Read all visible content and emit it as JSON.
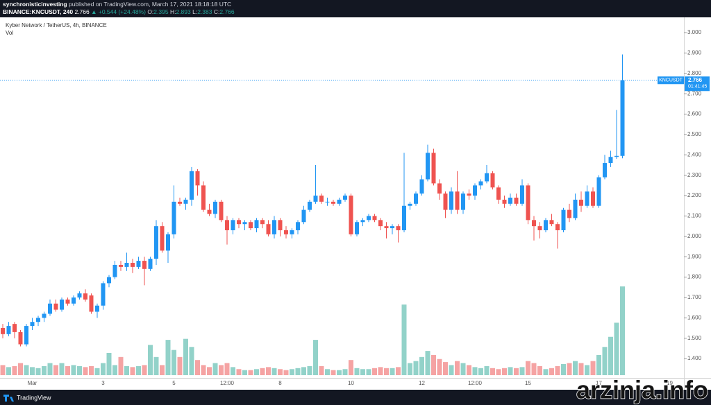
{
  "header": {
    "author": "synchronisticinvesting",
    "published": "published on TradingView.com, March 17, 2021 18:18:18 UTC",
    "symbol": "BINANCE:KNCUSDT, 240",
    "last": "2.766",
    "change": "▲ +0.544 (+24.48%)",
    "o_label": "O:",
    "o": "2.395",
    "h_label": "H:",
    "h": "2.893",
    "l_label": "L:",
    "l": "2.383",
    "c_label": "C:",
    "c": "2.766"
  },
  "chart_data": {
    "type": "candlestick",
    "title": "Kyber Network / TetherUS, 4h, BINANCE",
    "volume_label": "Vol",
    "up_color": "#2196f3",
    "down_color": "#ef5350",
    "volume_up_color": "#92d2c9",
    "volume_down_color": "#f5a3a3",
    "grid": false,
    "price_tag": {
      "symbol": "KNCUSDT",
      "price": "2.766",
      "countdown": "01:41:45"
    },
    "categories": [
      null,
      null,
      null,
      null,
      null,
      "Mar",
      null,
      null,
      null,
      null,
      null,
      null,
      null,
      null,
      null,
      null,
      null,
      "3",
      null,
      null,
      null,
      null,
      null,
      null,
      null,
      null,
      null,
      null,
      null,
      "5",
      null,
      null,
      null,
      null,
      null,
      null,
      null,
      null,
      "12:00",
      null,
      null,
      null,
      null,
      null,
      null,
      null,
      null,
      "8",
      null,
      null,
      null,
      null,
      null,
      null,
      null,
      null,
      null,
      null,
      null,
      "10",
      null,
      null,
      null,
      null,
      null,
      null,
      null,
      null,
      null,
      null,
      null,
      "12",
      null,
      null,
      null,
      null,
      null,
      null,
      null,
      null,
      "12:00",
      null,
      null,
      null,
      null,
      null,
      null,
      null,
      null,
      "15",
      null,
      null,
      null,
      null,
      null,
      null,
      null,
      null,
      null,
      null,
      null,
      "17",
      null,
      null,
      null,
      null,
      null,
      null,
      null,
      null,
      null,
      null,
      null,
      "19",
      null,
      null
    ],
    "open": [
      1.55,
      1.52,
      1.57,
      1.53,
      1.47,
      1.56,
      1.58,
      1.6,
      1.62,
      1.67,
      1.64,
      1.69,
      1.67,
      1.7,
      1.72,
      1.71,
      1.63,
      1.66,
      1.77,
      1.8,
      1.86,
      1.85,
      1.87,
      1.85,
      1.88,
      1.84,
      1.89,
      2.05,
      1.93,
      2.01,
      2.17,
      2.16,
      2.18,
      2.32,
      2.25,
      2.13,
      2.11,
      2.17,
      2.08,
      2.03,
      2.08,
      2.06,
      2.07,
      2.04,
      2.08,
      2.06,
      2.01,
      2.08,
      2.03,
      2.01,
      2.03,
      2.07,
      2.13,
      2.17,
      2.2,
      2.17,
      2.17,
      2.16,
      2.18,
      2.2,
      2.01,
      2.07,
      2.08,
      2.1,
      2.08,
      2.05,
      2.04,
      2.05,
      2.03,
      2.15,
      2.16,
      2.21,
      2.28,
      2.41,
      2.26,
      2.21,
      2.13,
      2.22,
      2.13,
      2.21,
      2.2,
      2.25,
      2.27,
      2.31,
      2.24,
      2.18,
      2.16,
      2.19,
      2.16,
      2.25,
      2.08,
      2.05,
      2.03,
      2.08,
      2.06,
      2.03,
      2.13,
      2.09,
      2.18,
      2.15,
      2.22,
      2.15,
      2.29,
      2.36,
      2.39,
      2.395,
      null,
      null,
      null,
      null,
      null,
      null,
      null,
      null,
      null,
      null
    ],
    "high": [
      1.57,
      1.58,
      1.58,
      1.54,
      1.57,
      1.6,
      1.61,
      1.63,
      1.69,
      1.69,
      1.7,
      1.7,
      1.71,
      1.73,
      1.74,
      1.72,
      1.67,
      1.78,
      1.81,
      1.88,
      1.88,
      1.92,
      1.89,
      1.9,
      1.9,
      1.9,
      2.08,
      2.07,
      2.02,
      2.25,
      2.19,
      2.19,
      2.34,
      2.33,
      2.27,
      2.16,
      2.18,
      2.18,
      2.1,
      2.09,
      2.09,
      2.08,
      2.08,
      2.09,
      2.09,
      2.08,
      2.1,
      2.09,
      2.05,
      2.04,
      2.08,
      2.15,
      2.18,
      2.35,
      2.21,
      2.19,
      2.18,
      2.19,
      2.21,
      2.21,
      2.08,
      2.09,
      2.11,
      2.11,
      2.09,
      2.07,
      2.06,
      2.06,
      2.41,
      2.17,
      2.22,
      2.3,
      2.45,
      2.43,
      2.28,
      2.22,
      2.24,
      2.32,
      2.22,
      2.23,
      2.26,
      2.28,
      2.35,
      2.32,
      2.25,
      2.2,
      2.21,
      2.21,
      2.28,
      2.26,
      2.1,
      2.07,
      2.09,
      2.11,
      2.07,
      2.14,
      2.16,
      2.21,
      2.22,
      2.25,
      2.24,
      2.3,
      2.4,
      2.42,
      2.62,
      2.893,
      null,
      null,
      null,
      null,
      null,
      null,
      null,
      null,
      null,
      null
    ],
    "low": [
      1.5,
      1.51,
      1.5,
      1.46,
      1.46,
      1.54,
      1.56,
      1.58,
      1.61,
      1.63,
      1.63,
      1.66,
      1.66,
      1.69,
      1.68,
      1.62,
      1.6,
      1.64,
      1.75,
      1.79,
      1.83,
      1.83,
      1.82,
      1.84,
      1.76,
      1.83,
      1.86,
      1.92,
      1.87,
      1.99,
      2.15,
      2.13,
      2.15,
      2.2,
      2.12,
      2.1,
      2.09,
      2.07,
      1.96,
      2.01,
      2.04,
      2.03,
      2.03,
      2.02,
      2.04,
      2.0,
      1.99,
      2.0,
      1.99,
      1.99,
      2.01,
      2.06,
      2.12,
      2.16,
      2.16,
      2.15,
      2.15,
      2.15,
      2.17,
      2.0,
      2.0,
      2.05,
      2.07,
      2.07,
      2.03,
      1.99,
      2.01,
      1.97,
      2.02,
      2.13,
      2.15,
      2.2,
      2.27,
      2.25,
      2.18,
      2.09,
      2.11,
      2.11,
      2.11,
      2.18,
      2.18,
      2.23,
      2.26,
      2.23,
      2.16,
      2.14,
      2.15,
      2.15,
      2.15,
      2.06,
      1.98,
      1.99,
      2.02,
      2.05,
      1.94,
      2.02,
      2.07,
      2.08,
      2.12,
      2.14,
      2.14,
      2.14,
      2.28,
      2.34,
      2.38,
      2.383,
      null,
      null,
      null,
      null,
      null,
      null,
      null,
      null,
      null,
      null
    ],
    "close": [
      1.52,
      1.56,
      1.53,
      1.47,
      1.56,
      1.58,
      1.6,
      1.62,
      1.67,
      1.64,
      1.69,
      1.67,
      1.7,
      1.72,
      1.69,
      1.63,
      1.66,
      1.77,
      1.8,
      1.86,
      1.85,
      1.87,
      1.85,
      1.88,
      1.84,
      1.89,
      2.05,
      1.93,
      2.01,
      2.17,
      2.16,
      2.18,
      2.32,
      2.25,
      2.13,
      2.11,
      2.17,
      2.08,
      2.03,
      2.08,
      2.06,
      2.07,
      2.04,
      2.08,
      2.06,
      2.01,
      2.08,
      2.03,
      2.01,
      2.03,
      2.07,
      2.13,
      2.17,
      2.2,
      2.17,
      2.17,
      2.16,
      2.18,
      2.2,
      2.01,
      2.07,
      2.08,
      2.1,
      2.08,
      2.05,
      2.04,
      2.05,
      2.03,
      2.15,
      2.16,
      2.21,
      2.28,
      2.41,
      2.26,
      2.21,
      2.13,
      2.22,
      2.13,
      2.21,
      2.2,
      2.25,
      2.27,
      2.31,
      2.24,
      2.18,
      2.16,
      2.19,
      2.16,
      2.25,
      2.08,
      2.05,
      2.03,
      2.08,
      2.06,
      2.03,
      2.13,
      2.09,
      2.18,
      2.15,
      2.22,
      2.15,
      2.29,
      2.36,
      2.39,
      2.395,
      2.766,
      null,
      null,
      null,
      null,
      null,
      null,
      null,
      null,
      null,
      null
    ],
    "volume": [
      10,
      8,
      9,
      12,
      10,
      8,
      7,
      9,
      12,
      10,
      12,
      9,
      10,
      9,
      8,
      9,
      7,
      12,
      22,
      10,
      18,
      9,
      8,
      9,
      10,
      30,
      18,
      10,
      35,
      25,
      18,
      36,
      28,
      15,
      10,
      8,
      12,
      10,
      12,
      8,
      6,
      5,
      5,
      6,
      7,
      8,
      7,
      6,
      5,
      6,
      7,
      8,
      9,
      35,
      9,
      6,
      5,
      5,
      6,
      15,
      7,
      6,
      6,
      7,
      8,
      7,
      7,
      8,
      70,
      12,
      14,
      18,
      24,
      20,
      16,
      13,
      10,
      14,
      12,
      10,
      8,
      7,
      9,
      7,
      6,
      7,
      8,
      7,
      8,
      14,
      12,
      9,
      6,
      7,
      9,
      11,
      12,
      14,
      12,
      10,
      14,
      20,
      28,
      38,
      52,
      88,
      null,
      null,
      null,
      null,
      null,
      null,
      null,
      null,
      null,
      null
    ],
    "ylim": [
      1.305,
      3.075
    ],
    "yticks": [
      {
        "value": 1.4,
        "label": "1.400"
      },
      {
        "value": 1.5,
        "label": "1.500"
      },
      {
        "value": 1.6,
        "label": "1.600"
      },
      {
        "value": 1.7,
        "label": "1.700"
      },
      {
        "value": 1.8,
        "label": "1.800"
      },
      {
        "value": 1.9,
        "label": "1.900"
      },
      {
        "value": 2.0,
        "label": "2.000"
      },
      {
        "value": 2.1,
        "label": "2.100"
      },
      {
        "value": 2.2,
        "label": "2.200"
      },
      {
        "value": 2.3,
        "label": "2.300"
      },
      {
        "value": 2.4,
        "label": "2.400"
      },
      {
        "value": 2.5,
        "label": "2.500"
      },
      {
        "value": 2.6,
        "label": "2.600"
      },
      {
        "value": 2.7,
        "label": "2.700"
      },
      {
        "value": 2.8,
        "label": "2.800"
      },
      {
        "value": 2.9,
        "label": "2.900"
      },
      {
        "value": 3.0,
        "label": "3.000"
      }
    ]
  },
  "footer": {
    "brand": "TradingView",
    "watermark": "arzinja.info"
  }
}
